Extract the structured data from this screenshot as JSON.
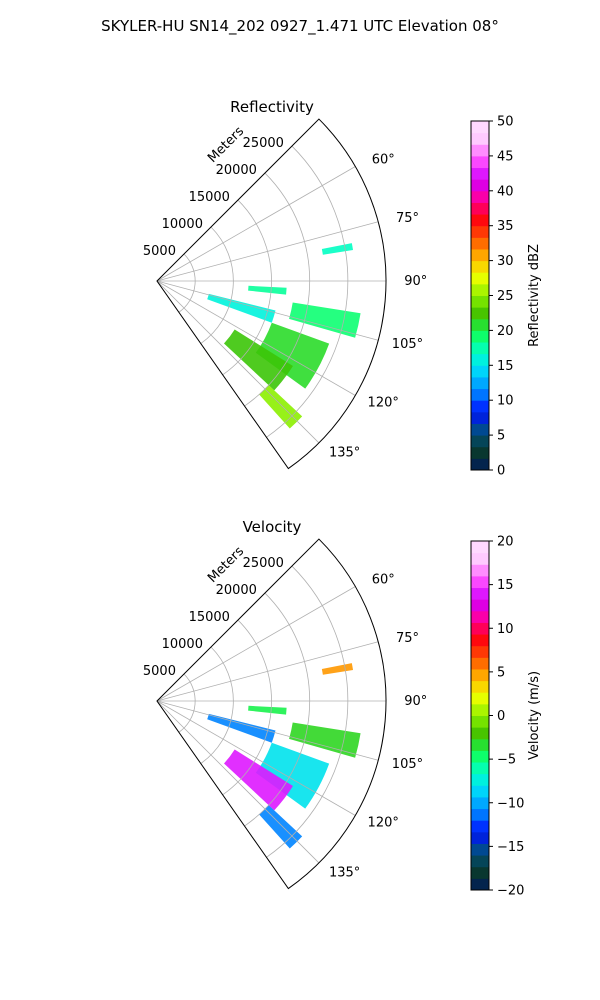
{
  "figure_title": "SKYLER-HU  SN14_202  0927_1.471 UTC Elevation 08°",
  "colors": {
    "reflectivity_stops": [
      "#001a5c",
      "#0a3a2a",
      "#004f86",
      "#0010ff",
      "#0080ff",
      "#00cfff",
      "#00ffd0",
      "#10ff60",
      "#40c000",
      "#8cf000",
      "#f0ff00",
      "#ffb000",
      "#ff5000",
      "#ff0010",
      "#ff00a0",
      "#d000ff",
      "#ff50ff",
      "#ffc8ff",
      "#ffe0ff"
    ],
    "velocity_stops": [
      "#001a5c",
      "#0a3a2a",
      "#004f86",
      "#0010ff",
      "#0080ff",
      "#00cfff",
      "#00ffd0",
      "#10ff60",
      "#40c000",
      "#8cf000",
      "#f0ff00",
      "#ffb000",
      "#ff5000",
      "#ff0010",
      "#ff00a0",
      "#d000ff",
      "#ff50ff",
      "#ffc8ff",
      "#ffe0ff"
    ],
    "grid": "#b0b0b0"
  },
  "chart_data": [
    {
      "type": "heatmap",
      "subtype": "polar-sector",
      "title": "Reflectivity",
      "radial_label": "Meters",
      "radial_ticks": [
        5000,
        10000,
        15000,
        20000,
        25000
      ],
      "radial_tick_labels": [
        "5000",
        "10000",
        "15000",
        "20000",
        "25000"
      ],
      "radial_max": 30000,
      "angle_range_deg": [
        45,
        145
      ],
      "angle_ticks": [
        60,
        75,
        90,
        105,
        120,
        135
      ],
      "angle_tick_labels": [
        "60°",
        "75°",
        "90°",
        "105°",
        "120°",
        "135°"
      ],
      "grid": true,
      "colorbar": {
        "label": "Reflectivity dBZ",
        "range": [
          0,
          50
        ],
        "ticks": [
          0,
          5,
          10,
          15,
          20,
          25,
          30,
          35,
          40,
          45,
          50
        ],
        "tick_labels": [
          "0",
          "5",
          "10",
          "15",
          "20",
          "25",
          "30",
          "35",
          "40",
          "45",
          "50"
        ]
      },
      "echoes": [
        {
          "az_range": [
            79,
            81
          ],
          "r_range_m": [
            22000,
            26000
          ],
          "value": 17
        },
        {
          "az_range": [
            93,
            96
          ],
          "r_range_m": [
            12000,
            17000
          ],
          "value": 18
        },
        {
          "az_range": [
            99,
            106
          ],
          "r_range_m": [
            18000,
            27000
          ],
          "value": 19
        },
        {
          "az_range": [
            104,
            110
          ],
          "r_range_m": [
            7000,
            16000
          ],
          "value": 16
        },
        {
          "az_range": [
            110,
            126
          ],
          "r_range_m": [
            16000,
            24000
          ],
          "value": 21
        },
        {
          "az_range": [
            122,
            133
          ],
          "r_range_m": [
            12000,
            21000
          ],
          "value": 22
        },
        {
          "az_range": [
            133,
            138
          ],
          "r_range_m": [
            20000,
            26000
          ],
          "value": 25
        }
      ]
    },
    {
      "type": "heatmap",
      "subtype": "polar-sector",
      "title": "Velocity",
      "radial_label": "Meters",
      "radial_ticks": [
        5000,
        10000,
        15000,
        20000,
        25000
      ],
      "radial_tick_labels": [
        "5000",
        "10000",
        "15000",
        "20000",
        "25000"
      ],
      "radial_max": 30000,
      "angle_range_deg": [
        45,
        145
      ],
      "angle_ticks": [
        60,
        75,
        90,
        105,
        120,
        135
      ],
      "angle_tick_labels": [
        "60°",
        "75°",
        "90°",
        "105°",
        "120°",
        "135°"
      ],
      "grid": true,
      "colorbar": {
        "label": "Velocity (m/s)",
        "range": [
          -20,
          20
        ],
        "ticks": [
          -20,
          -15,
          -10,
          -5,
          0,
          5,
          10,
          15,
          20
        ],
        "tick_labels": [
          "−20",
          "−15",
          "−10",
          "−5",
          "0",
          "5",
          "10",
          "15",
          "20"
        ]
      },
      "echoes": [
        {
          "az_range": [
            79,
            81
          ],
          "r_range_m": [
            22000,
            26000
          ],
          "value": 5
        },
        {
          "az_range": [
            93,
            96
          ],
          "r_range_m": [
            12000,
            17000
          ],
          "value": -4
        },
        {
          "az_range": [
            99,
            106
          ],
          "r_range_m": [
            18000,
            27000
          ],
          "value": -3
        },
        {
          "az_range": [
            104,
            110
          ],
          "r_range_m": [
            7000,
            16000
          ],
          "value": -11
        },
        {
          "az_range": [
            110,
            126
          ],
          "r_range_m": [
            16000,
            24000
          ],
          "value": -8
        },
        {
          "az_range": [
            122,
            133
          ],
          "r_range_m": [
            12000,
            21000
          ],
          "value": 14
        },
        {
          "az_range": [
            133,
            138
          ],
          "r_range_m": [
            20000,
            26000
          ],
          "value": -11
        }
      ]
    }
  ]
}
